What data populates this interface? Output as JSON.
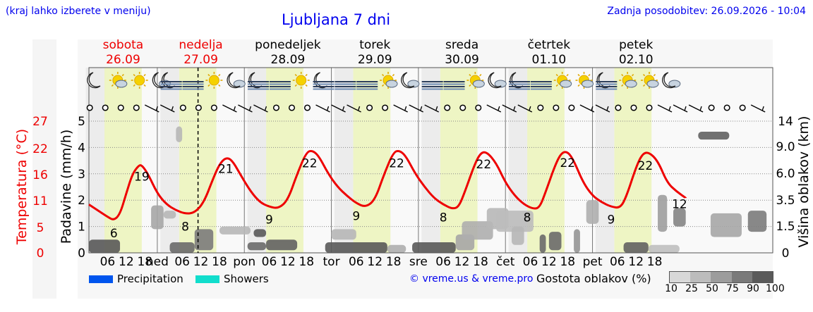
{
  "header": {
    "left_note": "(kraj lahko izberete v meniju)",
    "title": "Ljubljana 7 dni",
    "updated": "Zadnja posodobitev: 26.09.2026 - 10:04"
  },
  "days": [
    {
      "name": "sobota",
      "date": "26.09",
      "weekend": true,
      "abbr": ""
    },
    {
      "name": "nedelja",
      "date": "27.09",
      "weekend": true,
      "abbr": "ned"
    },
    {
      "name": "ponedeljek",
      "date": "28.09",
      "weekend": false,
      "abbr": "pon"
    },
    {
      "name": "torek",
      "date": "29.09",
      "weekend": false,
      "abbr": "tor"
    },
    {
      "name": "sreda",
      "date": "30.09",
      "weekend": false,
      "abbr": "sre"
    },
    {
      "name": "četrtek",
      "date": "01.10",
      "weekend": false,
      "abbr": "čet"
    },
    {
      "name": "petek",
      "date": "02.10",
      "weekend": false,
      "abbr": "pet"
    }
  ],
  "weather_icons": [
    [
      "moon",
      "sun-cloud",
      "sun",
      "cloud-night"
    ],
    [
      "moon-fog",
      "fog",
      "sun",
      "cloud-night"
    ],
    [
      "moon-fog",
      "fog",
      "sun",
      "moon-fog"
    ],
    [
      "fog",
      "fog",
      "sun-cloud",
      "cloud-night"
    ],
    [
      "fog",
      "fog",
      "sun-cloud",
      "cloud-night"
    ],
    [
      "moon-fog",
      "fog",
      "sun-cloud",
      "sun-cloud"
    ],
    [
      "moon-fog",
      "sun-cloud",
      "sun-cloud",
      "cloud-night"
    ]
  ],
  "chart_data": {
    "type": "line",
    "x_unit": "hours since 26.09 00:00",
    "x_range": [
      0,
      168
    ],
    "hour_ticks": [
      "06",
      "12",
      "18"
    ],
    "now_hour": 10.1,
    "temperature": {
      "name": "Temperatura (°C)",
      "color": "#ee0000",
      "points": [
        [
          0,
          10.0
        ],
        [
          3,
          8.6
        ],
        [
          6,
          7.2
        ],
        [
          8,
          6.4
        ],
        [
          10,
          7.8
        ],
        [
          12,
          12.5
        ],
        [
          14,
          17.0
        ],
        [
          16,
          18.9
        ],
        [
          17,
          19.0
        ],
        [
          19,
          17.0
        ],
        [
          22,
          12.5
        ],
        [
          25,
          10.0
        ],
        [
          28,
          8.7
        ],
        [
          31,
          7.9
        ],
        [
          34,
          8.1
        ],
        [
          37,
          10.5
        ],
        [
          40,
          16.0
        ],
        [
          42,
          19.2
        ],
        [
          44,
          20.7
        ],
        [
          46,
          20.2
        ],
        [
          49,
          16.5
        ],
        [
          52,
          13.0
        ],
        [
          55,
          10.5
        ],
        [
          58,
          9.5
        ],
        [
          61,
          9.1
        ],
        [
          64,
          11.0
        ],
        [
          67,
          17.0
        ],
        [
          70,
          22.0
        ],
        [
          72,
          22.3
        ],
        [
          74,
          21.0
        ],
        [
          77,
          17.0
        ],
        [
          80,
          14.0
        ],
        [
          83,
          12.0
        ],
        [
          86,
          10.3
        ],
        [
          89,
          9.4
        ],
        [
          92,
          11.0
        ],
        [
          95,
          17.0
        ],
        [
          98,
          22.0
        ],
        [
          100,
          22.3
        ],
        [
          102,
          21.0
        ],
        [
          105,
          17.0
        ],
        [
          108,
          14.0
        ],
        [
          111,
          11.5
        ],
        [
          114,
          10.0
        ],
        [
          117,
          9.0
        ],
        [
          119,
          9.5
        ],
        [
          121,
          13.0
        ],
        [
          124,
          19.0
        ],
        [
          126,
          21.8
        ],
        [
          128,
          22.0
        ],
        [
          131,
          19.5
        ],
        [
          134,
          15.0
        ],
        [
          137,
          12.0
        ],
        [
          140,
          10.0
        ],
        [
          143,
          9.0
        ],
        [
          145,
          9.3
        ],
        [
          147,
          13.0
        ],
        [
          150,
          19.0
        ],
        [
          152,
          21.8
        ],
        [
          154,
          22.1
        ],
        [
          156,
          20.0
        ],
        [
          159,
          15.0
        ],
        [
          162,
          12.0
        ],
        [
          165,
          10.5
        ],
        [
          168,
          9.5
        ],
        [
          171,
          9.2
        ],
        [
          173,
          12.0
        ],
        [
          176,
          18.5
        ],
        [
          178,
          21.5
        ],
        [
          180,
          22.0
        ],
        [
          183,
          20.0
        ],
        [
          186,
          15.0
        ],
        [
          189,
          13.0
        ],
        [
          192,
          11.5
        ]
      ],
      "labels": [
        {
          "x": 8,
          "t": "6"
        },
        {
          "x": 17,
          "t": "19"
        },
        {
          "x": 31,
          "t": "8"
        },
        {
          "x": 44,
          "t": "21"
        },
        {
          "x": 58,
          "t": "9"
        },
        {
          "x": 71,
          "t": "22"
        },
        {
          "x": 86,
          "t": "9"
        },
        {
          "x": 99,
          "t": "22"
        },
        {
          "x": 114,
          "t": "8"
        },
        {
          "x": 127,
          "t": "22"
        },
        {
          "x": 141,
          "t": "8"
        },
        {
          "x": 154,
          "t": "22"
        },
        {
          "x": 168,
          "t": "9"
        },
        {
          "x": 179,
          "t": "22"
        },
        {
          "x": 190,
          "t": "12"
        }
      ]
    },
    "y_left_temp_ticks": [
      "0",
      "5",
      "11",
      "16",
      "22",
      "27"
    ],
    "y_left_precip_ticks": [
      "0",
      "1",
      "2",
      "3",
      "4",
      "5"
    ],
    "y_right_cloud_ticks": [
      "0",
      "1.5",
      "3.5",
      "6.0",
      "9.0",
      "14"
    ],
    "temp_axis_label": "Temperatura (°C)",
    "precip_axis_label": "Padavine (mm/h)",
    "cloud_axis_label": "Višina oblakov (km)",
    "clouds": [
      {
        "x": [
          0,
          10
        ],
        "lv": [
          0,
          0.5
        ],
        "d": 80
      },
      {
        "x": [
          26,
          34
        ],
        "lv": [
          0,
          0.4
        ],
        "d": 70
      },
      {
        "x": [
          34,
          40
        ],
        "lv": [
          0.1,
          0.9
        ],
        "d": 60
      },
      {
        "x": [
          20,
          24
        ],
        "lv": [
          0.9,
          1.8
        ],
        "d": 35
      },
      {
        "x": [
          24,
          28
        ],
        "lv": [
          1.3,
          1.6
        ],
        "d": 25
      },
      {
        "x": [
          28,
          30
        ],
        "lv": [
          4.2,
          4.8
        ],
        "d": 25
      },
      {
        "x": [
          51,
          57
        ],
        "lv": [
          0.1,
          0.4
        ],
        "d": 70
      },
      {
        "x": [
          57,
          67
        ],
        "lv": [
          0.1,
          0.5
        ],
        "d": 75
      },
      {
        "x": [
          42,
          52
        ],
        "lv": [
          0.7,
          1.0
        ],
        "d": 25
      },
      {
        "x": [
          53,
          57
        ],
        "lv": [
          0.6,
          0.9
        ],
        "d": 80
      },
      {
        "x": [
          76,
          96
        ],
        "lv": [
          0,
          0.4
        ],
        "d": 80
      },
      {
        "x": [
          96,
          102
        ],
        "lv": [
          0,
          0.3
        ],
        "d": 30
      },
      {
        "x": [
          78,
          86
        ],
        "lv": [
          0.5,
          0.9
        ],
        "d": 25
      },
      {
        "x": [
          104,
          118
        ],
        "lv": [
          0,
          0.4
        ],
        "d": 80
      },
      {
        "x": [
          118,
          124
        ],
        "lv": [
          0.1,
          0.7
        ],
        "d": 35
      },
      {
        "x": [
          120,
          130
        ],
        "lv": [
          0.5,
          1.2
        ],
        "d": 30
      },
      {
        "x": [
          128,
          135
        ],
        "lv": [
          0.9,
          1.7
        ],
        "d": 25
      },
      {
        "x": [
          131,
          143
        ],
        "lv": [
          0.8,
          1.6
        ],
        "d": 22
      },
      {
        "x": [
          136,
          140
        ],
        "lv": [
          0.3,
          1.0
        ],
        "d": 25
      },
      {
        "x": [
          145,
          147
        ],
        "lv": [
          0,
          0.7
        ],
        "d": 70
      },
      {
        "x": [
          148,
          152
        ],
        "lv": [
          0.1,
          0.8
        ],
        "d": 70
      },
      {
        "x": [
          156,
          158
        ],
        "lv": [
          0,
          0.9
        ],
        "d": 45
      },
      {
        "x": [
          160,
          164
        ],
        "lv": [
          1.1,
          2.0
        ],
        "d": 30
      },
      {
        "x": [
          172,
          180
        ],
        "lv": [
          0,
          0.4
        ],
        "d": 75
      },
      {
        "x": [
          180,
          190
        ],
        "lv": [
          0,
          0.3
        ],
        "d": 20
      },
      {
        "x": [
          183,
          186
        ],
        "lv": [
          0.8,
          2.2
        ],
        "d": 40
      },
      {
        "x": [
          188,
          192
        ],
        "lv": [
          1.0,
          1.7
        ],
        "d": 55
      },
      {
        "x": [
          200,
          210
        ],
        "lv": [
          0.6,
          1.5
        ],
        "d": 35
      },
      {
        "x": [
          212,
          218
        ],
        "lv": [
          0.8,
          1.6
        ],
        "d": 60
      },
      {
        "x": [
          196,
          206
        ],
        "lv": [
          4.3,
          4.6
        ],
        "d": 75
      }
    ]
  },
  "legend": {
    "precip_label": "Precipitation",
    "precip_color": "#0055ee",
    "showers_label": "Showers",
    "showers_color": "#11ddcc",
    "credit": "© vreme.us & vreme.pro",
    "density_label": "Gostota oblakov (%)",
    "density_ticks": [
      "10",
      "25",
      "50",
      "75",
      "90",
      "100"
    ]
  },
  "colors": {
    "weekend": "#ee0000",
    "daylight_band": "#eef5c4",
    "title": "#0000ee"
  }
}
